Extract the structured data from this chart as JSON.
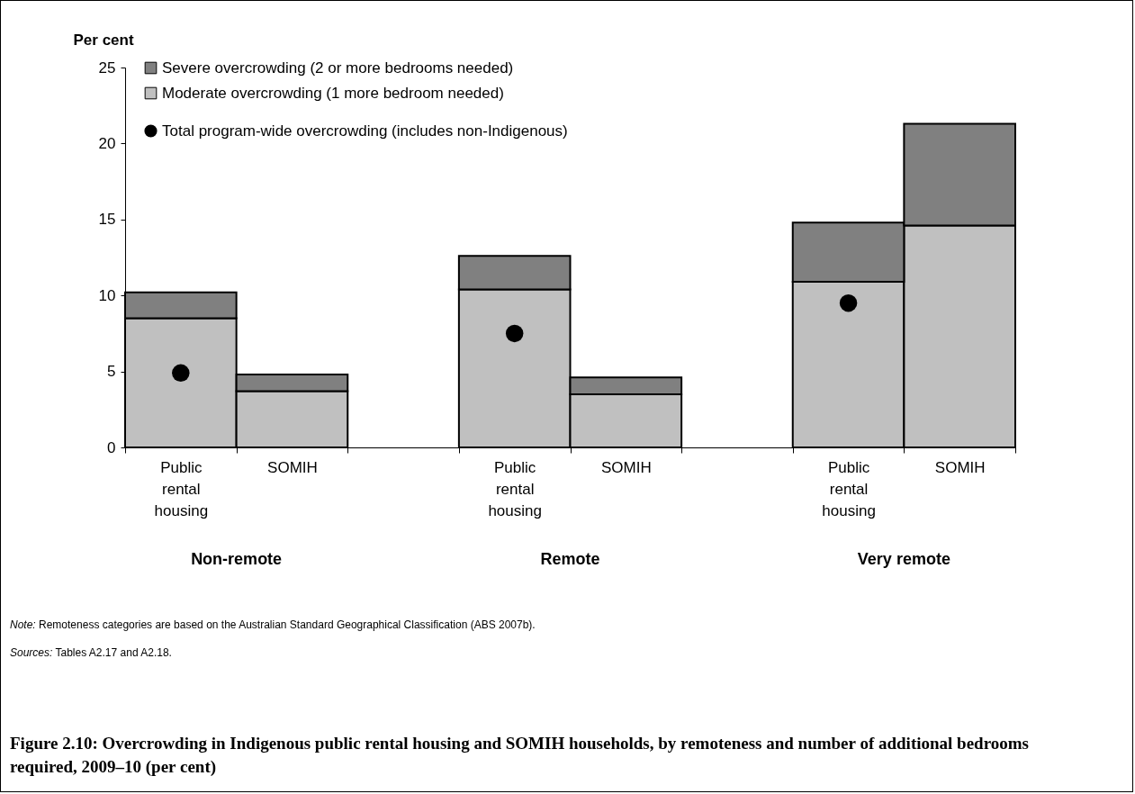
{
  "chart_data": {
    "type": "bar",
    "stacked": true,
    "title": "Figure 2.10: Overcrowding in Indigenous public rental housing and SOMIH households, by remoteness and number of additional bedrooms required, 2009–10 (per cent)",
    "ylabel": "Per cent",
    "categories": [
      "Public rental housing",
      "SOMIH",
      null,
      "Public rental housing",
      "SOMIH",
      null,
      "Public rental housing",
      "SOMIH"
    ],
    "series": [
      {
        "name": "Moderate overcrowding (1 more bedroom needed)",
        "color": "#c0c0c0",
        "values": [
          8.5,
          3.7,
          null,
          10.4,
          3.5,
          null,
          10.9,
          14.6
        ]
      },
      {
        "name": "Severe overcrowding (2 or more bedrooms needed)",
        "color": "#808080",
        "values": [
          1.7,
          1.1,
          null,
          2.2,
          1.1,
          null,
          3.9,
          6.7
        ]
      },
      {
        "name": "Total program-wide overcrowding (includes non-Indigenous)",
        "type": "scatter",
        "color": "#000000",
        "marker": "circle",
        "values": [
          4.9,
          null,
          null,
          7.5,
          null,
          null,
          9.5,
          null
        ]
      }
    ],
    "ylim": [
      0,
      25
    ],
    "yticks": [
      0,
      5,
      10,
      15,
      20,
      25
    ],
    "grid": false,
    "legend": "top left",
    "annotations": [
      "Non-remote",
      "Remote",
      "Very remote",
      "Note: Remoteness categories are based on the Australian Standard Geographical Classification (ABS 2007b).",
      "Sources: Tables A2.17 and A2.18."
    ]
  }
}
